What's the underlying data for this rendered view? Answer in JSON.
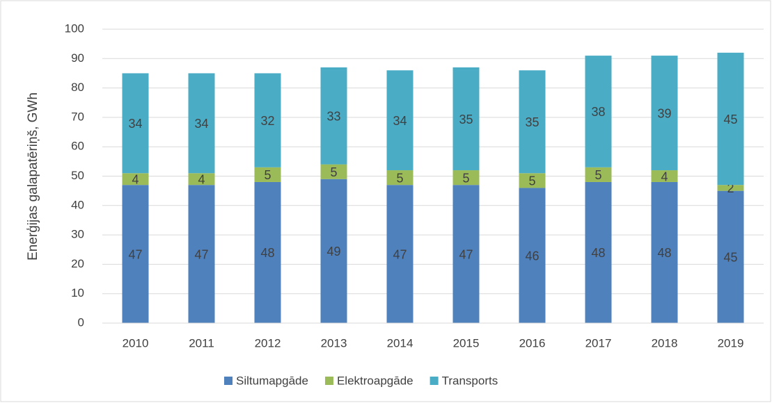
{
  "chart_data": {
    "type": "stacked_bar",
    "y_label": "Enerģijas galapatēriņš, GWh",
    "categories": [
      "2010",
      "2011",
      "2012",
      "2013",
      "2014",
      "2015",
      "2016",
      "2017",
      "2018",
      "2019"
    ],
    "series": [
      {
        "name": "Siltumapgāde",
        "color": "#4f81bd",
        "values": [
          47,
          47,
          48,
          49,
          47,
          47,
          46,
          48,
          48,
          45
        ]
      },
      {
        "name": "Elektroapgāde",
        "color": "#9bbb59",
        "values": [
          4,
          4,
          5,
          5,
          5,
          5,
          5,
          5,
          4,
          2
        ]
      },
      {
        "name": "Transports",
        "color": "#4bacc6",
        "values": [
          34,
          34,
          32,
          33,
          34,
          35,
          35,
          38,
          39,
          45
        ]
      }
    ],
    "ylim": [
      0,
      100
    ],
    "yticks": [
      0,
      10,
      20,
      30,
      40,
      50,
      60,
      70,
      80,
      90,
      100
    ],
    "grid": true,
    "legend": "bottom"
  }
}
